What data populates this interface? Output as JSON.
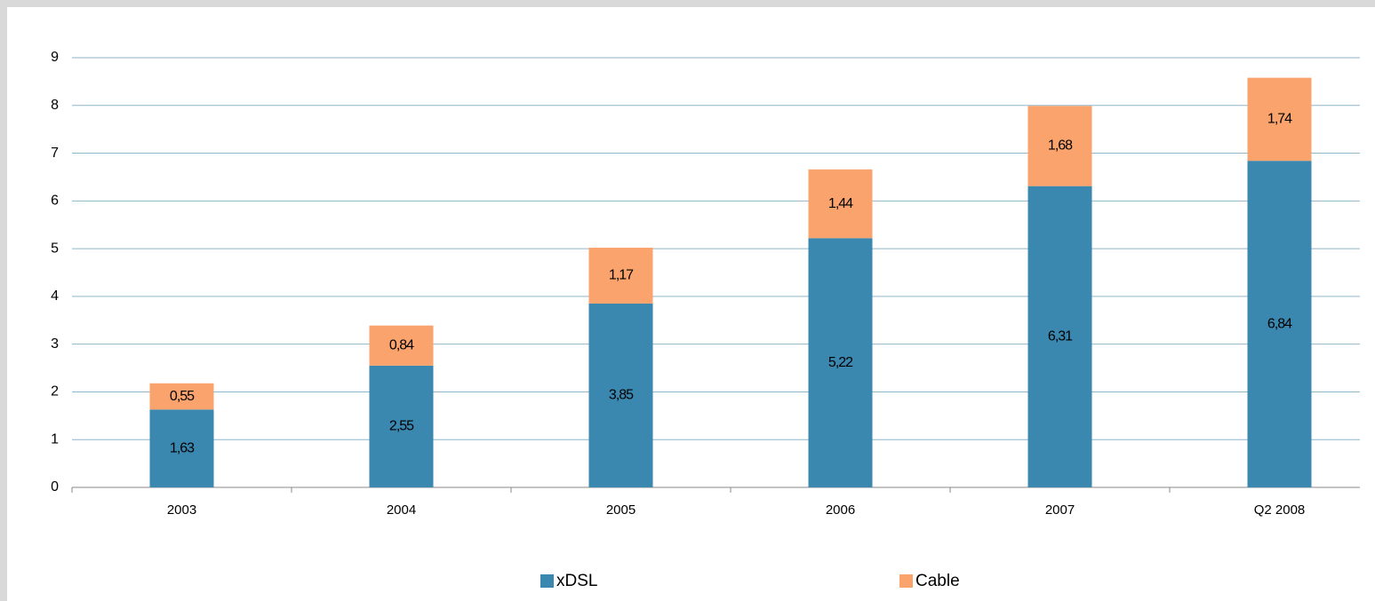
{
  "chart_data": {
    "type": "stacked_bar",
    "categories": [
      "2003",
      "2004",
      "2005",
      "2006",
      "2007",
      "Q2 2008"
    ],
    "series": [
      {
        "name": "xDSL",
        "color": "#3a87b0",
        "values": [
          1.63,
          2.55,
          3.85,
          5.22,
          6.31,
          6.84
        ],
        "value_labels": [
          "1,63",
          "2,55",
          "3,85",
          "5,22",
          "6,31",
          "6,84"
        ]
      },
      {
        "name": "Cable",
        "color": "#fba36c",
        "values": [
          0.55,
          0.84,
          1.17,
          1.44,
          1.68,
          1.74
        ],
        "value_labels": [
          "0,55",
          "0,84",
          "1,17",
          "1,44",
          "1,68",
          "1,74"
        ]
      }
    ],
    "ylim": [
      0,
      9
    ],
    "yticks": [
      0,
      1,
      2,
      3,
      4,
      5,
      6,
      7,
      8,
      9
    ],
    "grid": true,
    "legend": "bottom"
  }
}
